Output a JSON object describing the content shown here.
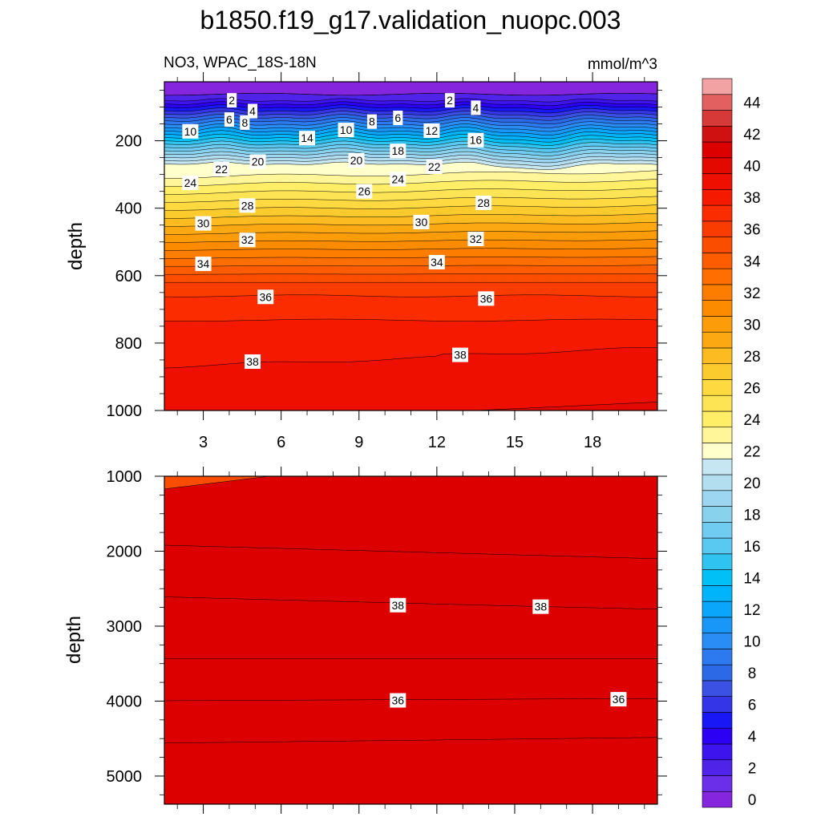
{
  "chart_data": {
    "type": "contour",
    "title": "b1850.f19_g17.validation_nuopc.003",
    "subtitle_left": "NO3, WPAC_18S-18N",
    "subtitle_right": "mmol/m^3",
    "colorbar": {
      "levels": [
        0,
        1,
        2,
        3,
        4,
        5,
        6,
        7,
        8,
        9,
        10,
        11,
        12,
        13,
        14,
        15,
        16,
        17,
        18,
        19,
        20,
        21,
        22,
        23,
        24,
        25,
        26,
        27,
        28,
        29,
        30,
        31,
        32,
        33,
        34,
        35,
        36,
        37,
        38,
        39,
        40,
        41,
        42,
        43,
        44,
        45
      ],
      "tick_labels": [
        "0",
        "2",
        "4",
        "6",
        "8",
        "10",
        "12",
        "14",
        "16",
        "18",
        "20",
        "22",
        "24",
        "26",
        "28",
        "30",
        "32",
        "34",
        "36",
        "38",
        "40",
        "42",
        "44"
      ],
      "colors": [
        "#8526de",
        "#6b2fea",
        "#4f23e8",
        "#3d14ee",
        "#2c00f2",
        "#1817f5",
        "#3535e8",
        "#3b51e4",
        "#2c69e6",
        "#2d7af0",
        "#2a8cf5",
        "#1997f8",
        "#0aa6fb",
        "#00b4fb",
        "#00c0f5",
        "#2ec3f0",
        "#5ac9f2",
        "#70cdf1",
        "#89d2ee",
        "#9dd6f0",
        "#b3def0",
        "#c6e7f1",
        "#ffffcc",
        "#fff599",
        "#ffee66",
        "#fde454",
        "#fed940",
        "#fbca2c",
        "#fcbb21",
        "#fca812",
        "#fc9c08",
        "#fc8b00",
        "#fd7d00",
        "#fe6e00",
        "#fd5d00",
        "#fb4d00",
        "#fb3c00",
        "#fb2c00",
        "#f51900",
        "#ee0f00",
        "#e40900",
        "#dc0000",
        "#d01111",
        "#d73838",
        "#e26060",
        "#f2a2a2"
      ]
    },
    "top_panel": {
      "ylabel": "depth",
      "x_ticks": [
        3,
        6,
        9,
        12,
        15,
        18
      ],
      "x_range": [
        1.5,
        20.5
      ],
      "y_ticks": [
        200,
        400,
        600,
        800,
        1000
      ],
      "y_range": [
        25,
        1000
      ],
      "x_tick_labels": [
        "3",
        "6",
        "9",
        "12",
        "15",
        "18"
      ],
      "y_tick_labels": [
        "200",
        "400",
        "600",
        "800",
        "1000"
      ],
      "contour_labels": [
        {
          "text": "2",
          "x": 4.1,
          "y": 80
        },
        {
          "text": "4",
          "x": 4.9,
          "y": 112
        },
        {
          "text": "6",
          "x": 4.0,
          "y": 137
        },
        {
          "text": "8",
          "x": 4.6,
          "y": 146
        },
        {
          "text": "10",
          "x": 2.5,
          "y": 172
        },
        {
          "text": "14",
          "x": 7.0,
          "y": 192
        },
        {
          "text": "10",
          "x": 8.5,
          "y": 168
        },
        {
          "text": "8",
          "x": 9.5,
          "y": 143
        },
        {
          "text": "6",
          "x": 10.5,
          "y": 132
        },
        {
          "text": "2",
          "x": 12.5,
          "y": 80
        },
        {
          "text": "4",
          "x": 13.5,
          "y": 102
        },
        {
          "text": "12",
          "x": 11.8,
          "y": 170
        },
        {
          "text": "16",
          "x": 13.5,
          "y": 198
        },
        {
          "text": "18",
          "x": 10.5,
          "y": 230
        },
        {
          "text": "20",
          "x": 5.1,
          "y": 262
        },
        {
          "text": "20",
          "x": 8.9,
          "y": 258
        },
        {
          "text": "22",
          "x": 3.7,
          "y": 284
        },
        {
          "text": "22",
          "x": 11.9,
          "y": 277
        },
        {
          "text": "24",
          "x": 2.5,
          "y": 325
        },
        {
          "text": "24",
          "x": 10.5,
          "y": 314
        },
        {
          "text": "26",
          "x": 9.2,
          "y": 350
        },
        {
          "text": "28",
          "x": 4.7,
          "y": 392
        },
        {
          "text": "28",
          "x": 13.8,
          "y": 384
        },
        {
          "text": "30",
          "x": 3.0,
          "y": 445
        },
        {
          "text": "30",
          "x": 11.4,
          "y": 441
        },
        {
          "text": "32",
          "x": 4.7,
          "y": 494
        },
        {
          "text": "32",
          "x": 13.5,
          "y": 491
        },
        {
          "text": "34",
          "x": 3.0,
          "y": 565
        },
        {
          "text": "34",
          "x": 12.0,
          "y": 560
        },
        {
          "text": "36",
          "x": 5.4,
          "y": 663
        },
        {
          "text": "36",
          "x": 13.9,
          "y": 668
        },
        {
          "text": "38",
          "x": 4.9,
          "y": 855
        },
        {
          "text": "38",
          "x": 12.9,
          "y": 835
        }
      ]
    },
    "bottom_panel": {
      "ylabel": "depth",
      "x_ticks": [
        3,
        6,
        9,
        12,
        15,
        18
      ],
      "x_range": [
        1.5,
        20.5
      ],
      "y_ticks": [
        1000,
        2000,
        3000,
        4000,
        5000
      ],
      "y_range": [
        1000,
        5375
      ],
      "x_tick_labels": [],
      "y_tick_labels": [
        "1000",
        "2000",
        "3000",
        "4000",
        "5000"
      ],
      "contour_labels": [
        {
          "text": "38",
          "x": 10.5,
          "y": 2720
        },
        {
          "text": "38",
          "x": 16.0,
          "y": 2740
        },
        {
          "text": "36",
          "x": 10.5,
          "y": 3990
        },
        {
          "text": "36",
          "x": 19.0,
          "y": 3975
        }
      ]
    }
  }
}
